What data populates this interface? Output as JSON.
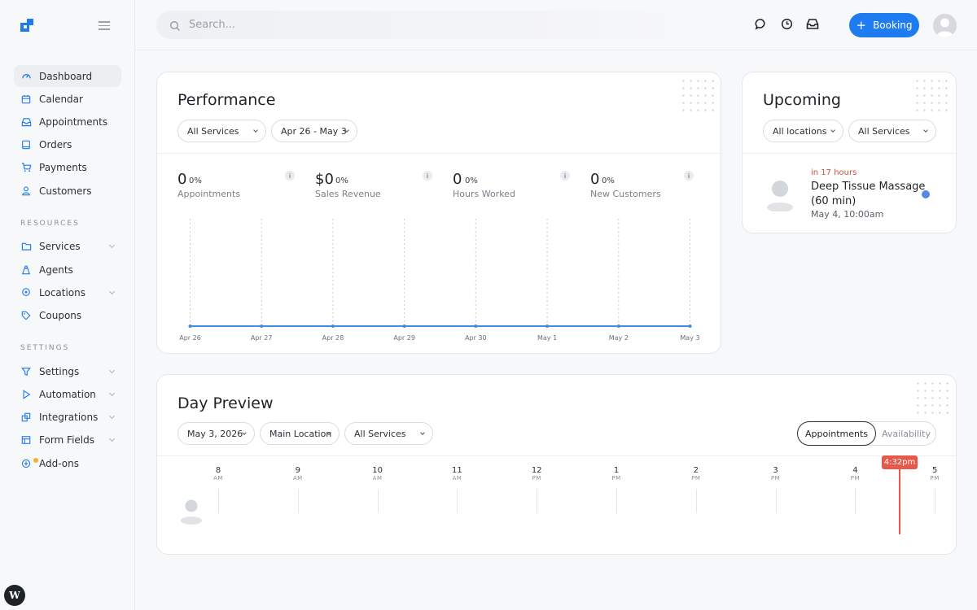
{
  "sidebar": {
    "main_items": [
      {
        "label": "Dashboard",
        "icon": "dashboard-icon",
        "active": true
      },
      {
        "label": "Calendar",
        "icon": "calendar-icon"
      },
      {
        "label": "Appointments",
        "icon": "inbox-icon"
      },
      {
        "label": "Orders",
        "icon": "book-icon"
      },
      {
        "label": "Payments",
        "icon": "cart-icon"
      },
      {
        "label": "Customers",
        "icon": "user-icon"
      }
    ],
    "resources_label": "RESOURCES",
    "resource_items": [
      {
        "label": "Services",
        "icon": "folder-icon",
        "has_submenu": true
      },
      {
        "label": "Agents",
        "icon": "agent-icon"
      },
      {
        "label": "Locations",
        "icon": "location-pin-icon",
        "has_submenu": true
      },
      {
        "label": "Coupons",
        "icon": "tag-icon"
      }
    ],
    "settings_label": "SETTINGS",
    "settings_items": [
      {
        "label": "Settings",
        "icon": "sliders-icon",
        "has_submenu": true
      },
      {
        "label": "Automation",
        "icon": "play-icon",
        "has_submenu": true
      },
      {
        "label": "Integrations",
        "icon": "integrations-icon",
        "has_submenu": true
      },
      {
        "label": "Form Fields",
        "icon": "form-icon",
        "has_submenu": true
      },
      {
        "label": "Add-ons",
        "icon": "plus-circle-icon"
      }
    ]
  },
  "topbar": {
    "search_placeholder": "Search...",
    "booking_label": "Booking"
  },
  "performance": {
    "title": "Performance",
    "service_filter": "All Services",
    "date_range": "Apr 26 - May 3",
    "metrics": [
      {
        "value": "0",
        "pct": "0%",
        "label": "Appointments"
      },
      {
        "value": "$0",
        "pct": "0%",
        "label": "Sales Revenue"
      },
      {
        "value": "0",
        "pct": "0%",
        "label": "Hours Worked"
      },
      {
        "value": "0",
        "pct": "0%",
        "label": "New Customers"
      }
    ],
    "info_glyph": "i"
  },
  "chart_data": {
    "type": "line",
    "x": [
      "Apr 26",
      "Apr 27",
      "Apr 28",
      "Apr 29",
      "Apr 30",
      "May 1",
      "May 2",
      "May 3"
    ],
    "series": [
      {
        "values": [
          0,
          0,
          0,
          0,
          0,
          0,
          0,
          0
        ]
      }
    ],
    "line_color": "#3a8ee6",
    "grid": "vertical dotted"
  },
  "upcoming": {
    "title": "Upcoming",
    "location_filter": "All locations",
    "service_filter": "All Services",
    "item": {
      "when": "in 17 hours",
      "title": "Deep Tissue Massage (60 min)",
      "date": "May 4, 10:00am"
    }
  },
  "day_preview": {
    "title": "Day Preview",
    "date": "May 3, 2026",
    "location": "Main Location",
    "service_filter": "All Services",
    "toggle": {
      "active": "Appointments",
      "inactive": "Availability"
    },
    "hours": [
      {
        "h": "8",
        "ap": "AM"
      },
      {
        "h": "9",
        "ap": "AM"
      },
      {
        "h": "10",
        "ap": "AM"
      },
      {
        "h": "11",
        "ap": "AM"
      },
      {
        "h": "12",
        "ap": "PM"
      },
      {
        "h": "1",
        "ap": "PM"
      },
      {
        "h": "2",
        "ap": "PM"
      },
      {
        "h": "3",
        "ap": "PM"
      },
      {
        "h": "4",
        "ap": "PM"
      },
      {
        "h": "5",
        "ap": "PM"
      }
    ],
    "now_label": "4:32pm"
  },
  "colors": {
    "accent": "#1f7bf0",
    "now": "#e8584a",
    "upcoming_when": "#d0503a"
  }
}
